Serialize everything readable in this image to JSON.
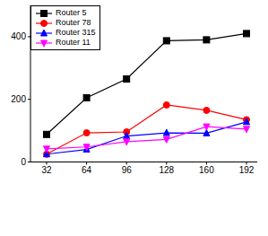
{
  "chart_data": {
    "type": "line",
    "categories": [
      "32",
      "64",
      "96",
      "128",
      "160",
      "192"
    ],
    "series": [
      {
        "name": "Router 5",
        "color": "#000000",
        "marker": "square",
        "values": [
          88,
          205,
          265,
          387,
          390,
          410
        ]
      },
      {
        "name": "Router 78",
        "color": "#ff0000",
        "marker": "circle",
        "values": [
          25,
          93,
          96,
          182,
          165,
          135
        ]
      },
      {
        "name": "Router 315",
        "color": "#0000ff",
        "marker": "triangle",
        "values": [
          25,
          40,
          83,
          93,
          92,
          128
        ]
      },
      {
        "name": "Router 11",
        "color": "#ff00ff",
        "marker": "triangle-down",
        "values": [
          42,
          48,
          65,
          72,
          113,
          105
        ]
      }
    ],
    "ylim": [
      0,
      500
    ],
    "yticks": [
      0,
      200,
      400
    ],
    "grid": false,
    "legend": "upper left"
  }
}
